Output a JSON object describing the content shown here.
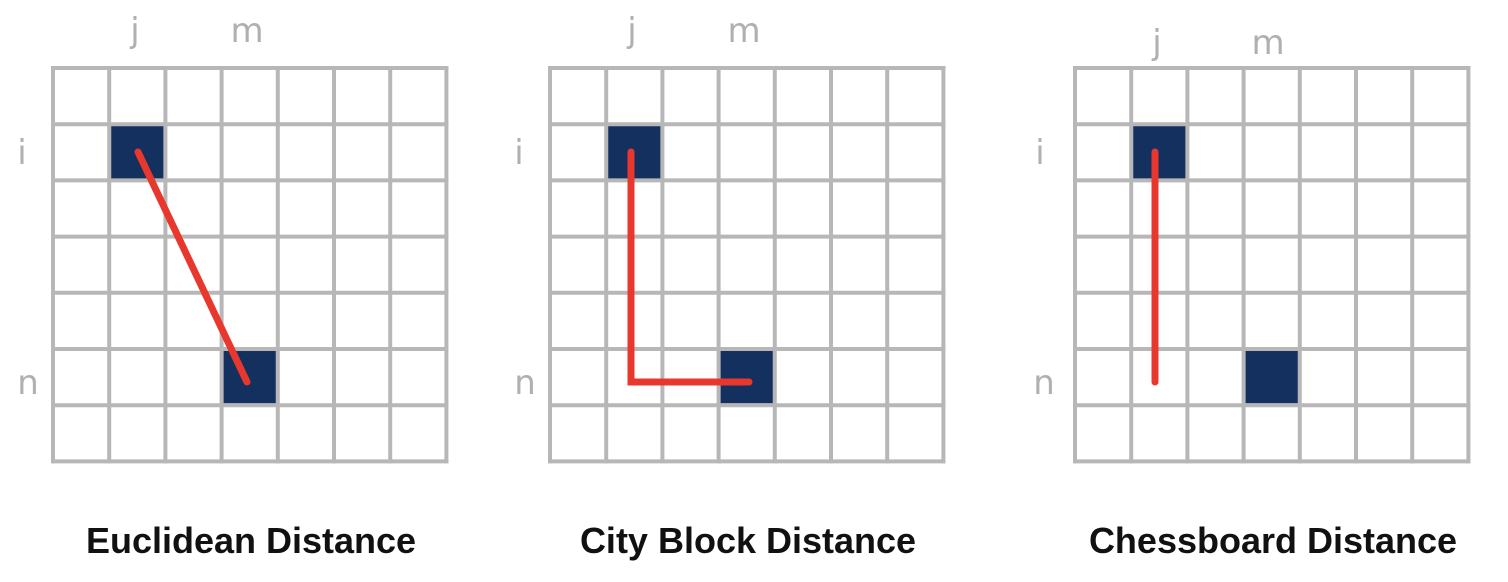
{
  "grid": {
    "rows": 7,
    "cols": 7,
    "line_color": "#b7b7b7",
    "cell_color": "#14305e",
    "path_color": "#e8382e"
  },
  "labels": {
    "col_j": "j",
    "col_m": "m",
    "row_i": "i",
    "row_n": "n"
  },
  "points": {
    "a": {
      "row": 1,
      "col": 1
    },
    "b": {
      "row": 5,
      "col": 3
    }
  },
  "panels": [
    {
      "key": "euclidean",
      "caption": "Euclidean Distance",
      "path": "diagonal"
    },
    {
      "key": "cityblock",
      "caption": "City Block Distance",
      "path": "manhattan"
    },
    {
      "key": "chessboard",
      "caption": "Chessboard Distance",
      "path": "vertical"
    }
  ]
}
